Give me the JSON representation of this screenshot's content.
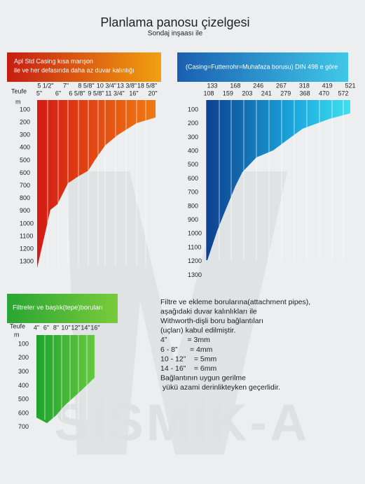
{
  "header": {
    "title": "Planlama panosu çizelgesi",
    "subtitle": "Sondaj inşaası ile"
  },
  "panels": [
    {
      "banner": [
        "Apl Std Casing kısa manşon",
        "ile ve her defasında daha az duvar kalınlığı"
      ],
      "axis_label": "Teufe",
      "unit": "m",
      "depths": [
        "100",
        "200",
        "300",
        "400",
        "500",
        "600",
        "700",
        "800",
        "900",
        "1000",
        "1100",
        "1200",
        "1300"
      ],
      "sizes_top": [
        "5 1/2\"",
        "7\"",
        "8 5/8\"",
        "10 3/4\"",
        "13 3/8\"",
        "18 5/8\""
      ],
      "sizes_bottom": [
        "5\"",
        "6\"",
        "6 5/8\"",
        "9 5/8\"",
        "11 3/4\"",
        "16\"",
        "20\""
      ]
    },
    {
      "banner": [
        "(Casing=Futterrohr=Muhafaza borusu) DIN 498 e göre"
      ],
      "depths": [
        "100",
        "200",
        "300",
        "400",
        "500",
        "600",
        "700",
        "800",
        "900",
        "1000",
        "1100",
        "1200",
        "1300"
      ],
      "sizes_top": [
        "133",
        "168",
        "246",
        "267",
        "318",
        "419",
        "521"
      ],
      "sizes_bottom": [
        "108",
        "159",
        "203",
        "241",
        "279",
        "368",
        "470",
        "572"
      ]
    },
    {
      "banner": [
        "Filtreler ve başlık(tepe)boruları"
      ],
      "axis_label": "Teufe",
      "unit": "m",
      "depths": [
        "100",
        "200",
        "300",
        "400",
        "500",
        "600",
        "700"
      ],
      "sizes_top": [
        "4\"",
        "6\"",
        "8\"",
        "10\"",
        "12\"",
        "14\"",
        "16\""
      ]
    }
  ],
  "notes": [
    "Filtre ve ekleme borularına(attachment pipes),",
    "aşağıdaki duvar kalınlıkları ile",
    "Withworth-dişli boru bağlantıları",
    "(uçları) kabul edilmiştir.",
    "4”          = 3mm",
    "6 - 8”      = 4mm",
    "10 - 12”    = 5mm",
    "14 - 16”    = 6mm",
    "Bağlantının uygun gerilme",
    " yükü azami derinlikteyken geçerlidir."
  ],
  "watermark": "SİSMİK-A"
}
